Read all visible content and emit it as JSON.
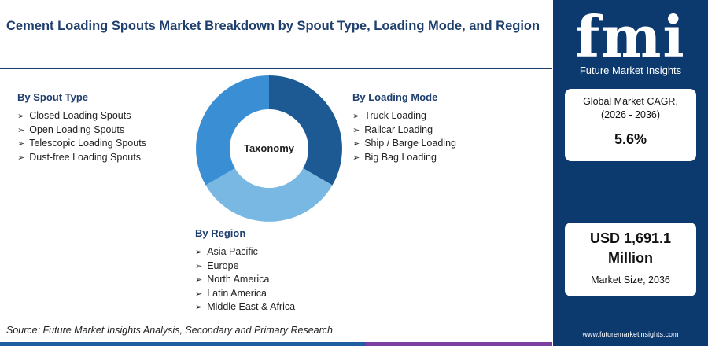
{
  "header": {
    "title": "Cement Loading Spouts Market Breakdown by Spout Type, Loading Mode, and Region"
  },
  "taxonomy": {
    "center_label": "Taxonomy",
    "groups": [
      {
        "title": "By Spout Type",
        "items": [
          "Closed Loading Spouts",
          "Open Loading Spouts",
          "Telescopic Loading Spouts",
          "Dust-free Loading Spouts"
        ]
      },
      {
        "title": "By Loading Mode",
        "items": [
          "Truck Loading",
          "Railcar Loading",
          "Ship / Barge Loading",
          "Big Bag Loading"
        ]
      },
      {
        "title": "By Region",
        "items": [
          "Asia Pacific",
          "Europe",
          "North America",
          "Latin America",
          "Middle East & Africa"
        ]
      }
    ]
  },
  "source": "Source: Future Market Insights Analysis, Secondary and Primary Research",
  "sidebar": {
    "logo": "fmi",
    "logo_caption": "Future Market Insights",
    "cagr": {
      "label": "Global Market CAGR, (2026 - 2036)",
      "value": "5.6%"
    },
    "market_size": {
      "value": "USD 1,691.1 Million",
      "label": "Market Size, 2036"
    },
    "url": "www.futuremarketinsights.com"
  }
}
